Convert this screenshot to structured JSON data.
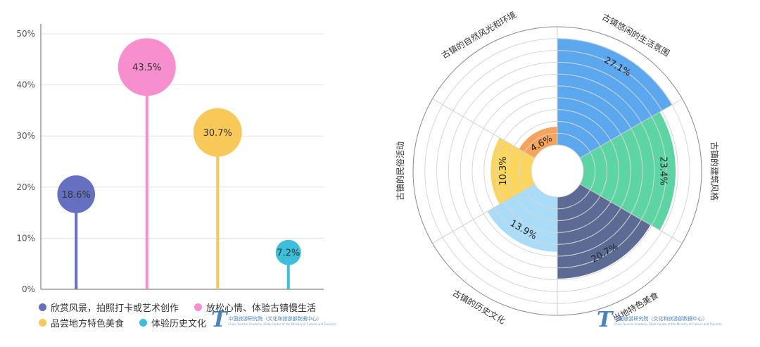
{
  "chart_data": [
    {
      "type": "lollipop",
      "categories": [
        "欣赏风景，拍照打卡或艺术创作",
        "放松心情、体验古镇慢生活",
        "品尝地方特色美食",
        "体验历史文化"
      ],
      "values": [
        18.6,
        43.5,
        30.7,
        7.2
      ],
      "value_labels": [
        "18.6%",
        "43.5%",
        "30.7%",
        "7.2%"
      ],
      "colors": [
        "#6570c1",
        "#f78fcf",
        "#f8c958",
        "#3dbfdc"
      ],
      "ylim": [
        0,
        50
      ],
      "yticks": [
        "0%",
        "10%",
        "20%",
        "30%",
        "40%",
        "50%"
      ],
      "grid": true,
      "legend": "bottom"
    },
    {
      "type": "polar_bar",
      "categories": [
        "古镇悠闲的生活氛围",
        "古镇的建筑风格",
        "当地特色美食",
        "古镇的历史文化",
        "古镇的民俗活动",
        "古镇的自然风光和环境"
      ],
      "values": [
        27.1,
        23.4,
        20.7,
        13.9,
        10.3,
        4.6
      ],
      "value_labels": [
        "27.1%",
        "23.4%",
        "20.7%",
        "13.9%",
        "10.3%",
        "4.6%"
      ],
      "colors": [
        "#5ba8ee",
        "#5dd5a2",
        "#5b6b94",
        "#a9dcf6",
        "#fbd65c",
        "#f7a35c"
      ],
      "rmax": 30,
      "grid": true
    }
  ],
  "watermark": {
    "logo": "T",
    "cn": "中国旅游研究院（文化和旅游部数据中心）",
    "en": "China Tourism Academy (Data Center of the Ministry of Culture and Tourism)"
  }
}
